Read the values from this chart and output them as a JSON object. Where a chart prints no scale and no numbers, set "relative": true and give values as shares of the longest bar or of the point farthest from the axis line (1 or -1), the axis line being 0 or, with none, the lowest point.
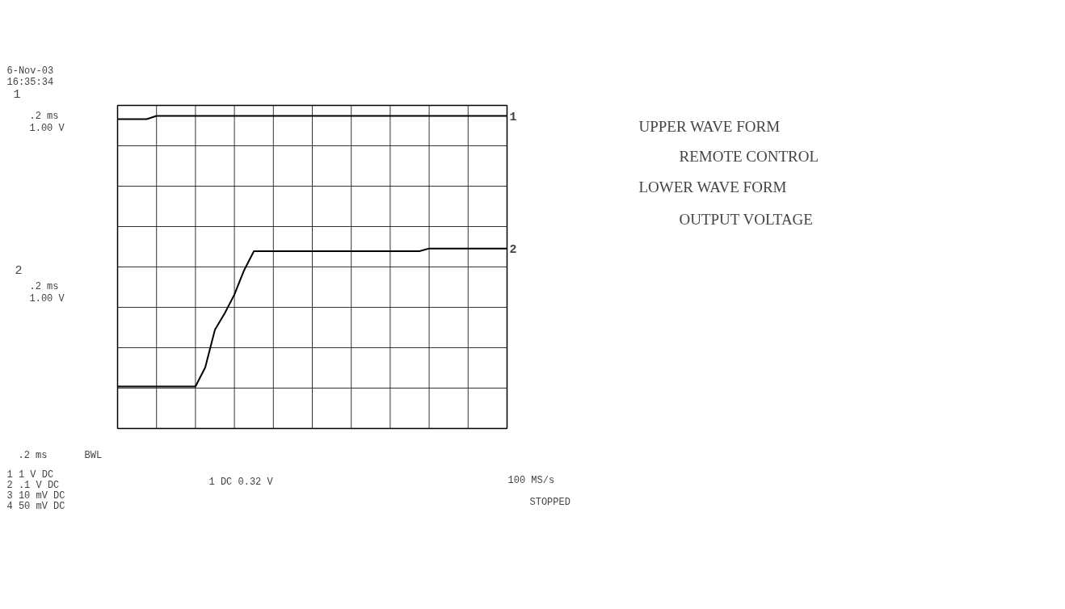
{
  "chart_data": {
    "type": "line",
    "relative": true,
    "grid": true,
    "line_style": "solid",
    "marker": "none",
    "categories": [
      null,
      null,
      null,
      null,
      null,
      null,
      null,
      null,
      null,
      null,
      null,
      null,
      null,
      null,
      null,
      null,
      null,
      null,
      null,
      null,
      null,
      null,
      null,
      null,
      null,
      null,
      null,
      null,
      null,
      null,
      null,
      null,
      null,
      null,
      null,
      null,
      null,
      null,
      null,
      null,
      null
    ],
    "series": [
      {
        "name": "1",
        "color": "#000000",
        "values": [
          0.988,
          0.988,
          0.988,
          0.988,
          1,
          1,
          1,
          1,
          1,
          1,
          1,
          1,
          1,
          1,
          1,
          1,
          1,
          1,
          1,
          1,
          1,
          1,
          1,
          1,
          1,
          1,
          1,
          1,
          1,
          1,
          1,
          1,
          1,
          1,
          1,
          1,
          1,
          1,
          1,
          1,
          1
        ]
      },
      {
        "name": "2",
        "color": "#000000",
        "values": [
          0,
          0,
          0,
          0,
          0,
          0,
          0,
          0,
          0,
          0.07,
          0.21,
          0.27,
          0.34,
          0.43,
          0.5,
          0.5,
          0.5,
          0.5,
          0.5,
          0.5,
          0.5,
          0.5,
          0.5,
          0.5,
          0.5,
          0.5,
          0.5,
          0.5,
          0.5,
          0.5,
          0.5,
          0.5,
          0.51,
          0.51,
          0.51,
          0.51,
          0.51,
          0.51,
          0.51,
          0.51,
          0.51
        ]
      }
    ],
    "annotations": [
      "6-Nov-03",
      "16:35:34",
      "1",
      ".2 ms",
      "1.00 V",
      "2",
      ".2 ms",
      "1.00 V",
      ".2 ms",
      "BWL",
      "1   1  V  DC",
      "2  .1  V  DC",
      "3  10 mV  DC",
      "4  50 mV  DC",
      "1 DC 0.32 V",
      "100 MS/s",
      "STOPPED",
      "UPPER WAVE FORM",
      "REMOTE  CONTROL",
      "LOWER WAVE FORM",
      "OUTPUT  VOLTAGE"
    ]
  }
}
